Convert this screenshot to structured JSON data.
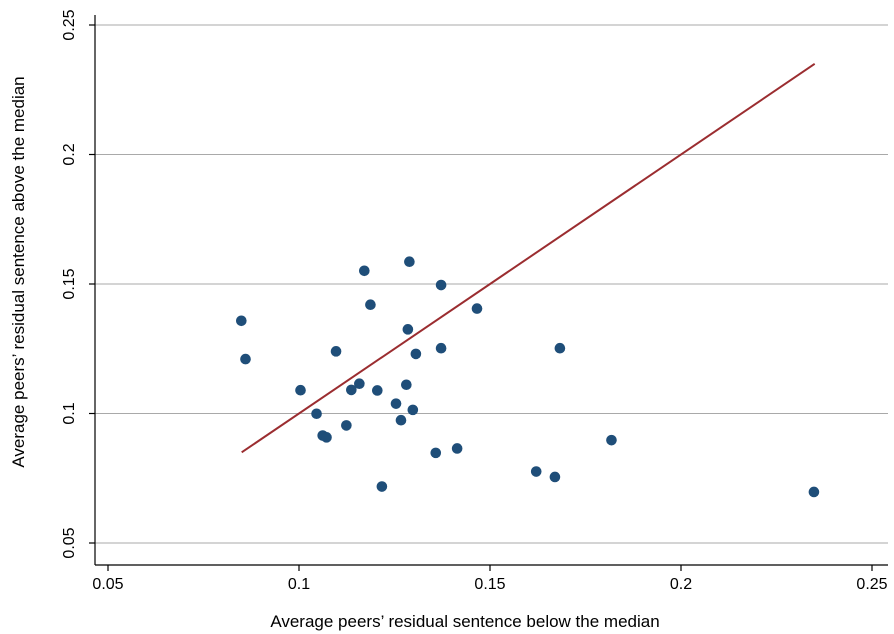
{
  "chart_data": {
    "type": "scatter",
    "title": "",
    "xlabel": "Average peers’ residual sentence below the median",
    "ylabel": "Average peers’ residual sentence above the median",
    "xlim": [
      0.05,
      0.25
    ],
    "ylim": [
      0.05,
      0.25
    ],
    "xticks": [
      0.05,
      0.1,
      0.15,
      0.2,
      0.25
    ],
    "yticks": [
      0.05,
      0.1,
      0.15,
      0.2,
      0.25
    ],
    "xtick_labels": [
      "0.05",
      "0.1",
      "0.15",
      "0.2",
      "0.25"
    ],
    "ytick_labels": [
      "0.05",
      "0.1",
      "0.15",
      "0.2",
      "0.25"
    ],
    "grid": "horizontal",
    "marker_color": "#1f4e79",
    "line_color": "#9b2d30",
    "reference_line": {
      "type": "45-degree",
      "x": [
        0.085,
        0.235
      ],
      "y": [
        0.085,
        0.235
      ]
    },
    "series": [
      {
        "points": [
          [
            0.0849,
            0.1358
          ],
          [
            0.086,
            0.121
          ],
          [
            0.1004,
            0.109
          ],
          [
            0.1046,
            0.0999
          ],
          [
            0.1062,
            0.0915
          ],
          [
            0.1072,
            0.0908
          ],
          [
            0.1097,
            0.124
          ],
          [
            0.1124,
            0.0954
          ],
          [
            0.1137,
            0.1091
          ],
          [
            0.1158,
            0.1115
          ],
          [
            0.1171,
            0.1551
          ],
          [
            0.1187,
            0.142
          ],
          [
            0.1205,
            0.1089
          ],
          [
            0.1217,
            0.0718
          ],
          [
            0.1254,
            0.1038
          ],
          [
            0.1267,
            0.0974
          ],
          [
            0.1281,
            0.1111
          ],
          [
            0.1285,
            0.1325
          ],
          [
            0.1289,
            0.1586
          ],
          [
            0.1298,
            0.1014
          ],
          [
            0.1306,
            0.123
          ],
          [
            0.1358,
            0.0848
          ],
          [
            0.1372,
            0.1252
          ],
          [
            0.1372,
            0.1496
          ],
          [
            0.1414,
            0.0865
          ],
          [
            0.1466,
            0.1405
          ],
          [
            0.1621,
            0.0776
          ],
          [
            0.167,
            0.0755
          ],
          [
            0.1683,
            0.1252
          ],
          [
            0.1818,
            0.0897
          ],
          [
            0.2348,
            0.0697
          ]
        ]
      }
    ]
  }
}
